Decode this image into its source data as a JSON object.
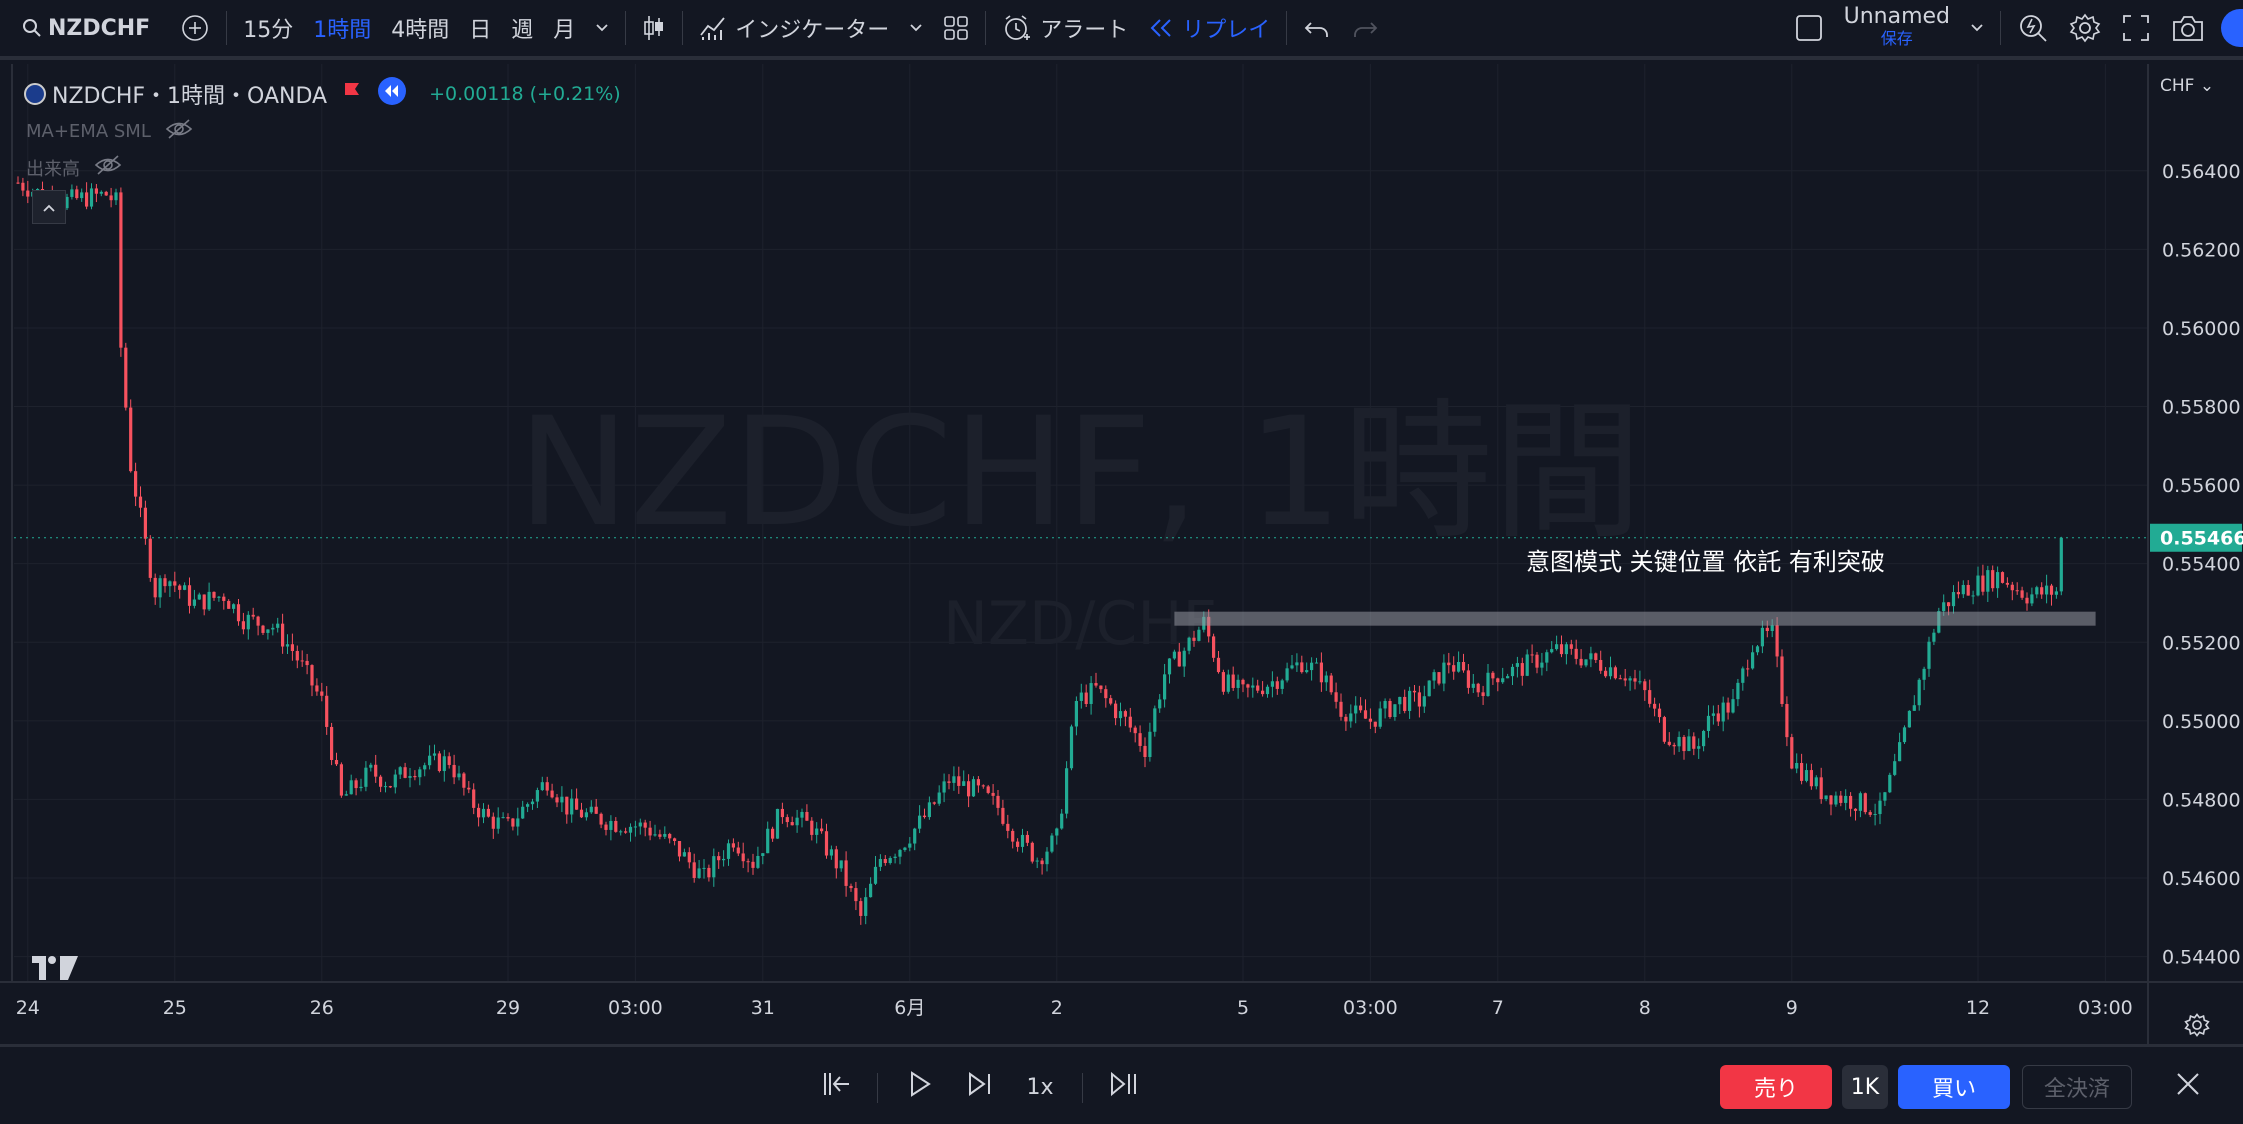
{
  "toolbar": {
    "symbol": "NZDCHF",
    "intervals": [
      "15分",
      "1時間",
      "4時間",
      "日",
      "週",
      "月"
    ],
    "active_interval": "1時間",
    "indicators_label": "インジケーター",
    "alert_label": "アラート",
    "replay_label": "リプレイ",
    "layout_name": "Unnamed",
    "save_label": "保存"
  },
  "legend": {
    "title": "NZDCHF・1時間・OANDA",
    "change": "+0.00118 (+0.21%)",
    "indicator1": "MA+EMA SML",
    "indicator2": "出来高"
  },
  "watermark": {
    "main": "NZDCHF, 1時間",
    "sub": "NZD/CHF"
  },
  "annotation": "意图模式 关键位置 依託 有利突破",
  "price_axis": {
    "currency": "CHF",
    "current_price": "0.55466"
  },
  "replay_controls": {
    "speed": "1x",
    "sell_label": "売り",
    "qty_label": "1K",
    "buy_label": "買い",
    "close_all_label": "全決済"
  },
  "colors": {
    "background": "#131722",
    "up": "#22ab94",
    "down": "#f7525f",
    "accent": "#2962ff",
    "price_tag": "#22ab94"
  },
  "chart_data": {
    "type": "candlestick",
    "symbol": "NZDCHF",
    "timeframe": "1時間",
    "ylim": [
      0.5432,
      0.5657
    ],
    "y_ticks": [
      0.564,
      0.562,
      0.56,
      0.558,
      0.556,
      0.554,
      0.552,
      0.55,
      0.548,
      0.546,
      0.544
    ],
    "y_tick_labels": [
      "0.56400",
      "0.56200",
      "0.56000",
      "0.55800",
      "0.55600",
      "0.55400",
      "0.55200",
      "0.55000",
      "0.54800",
      "0.54600",
      "0.54400"
    ],
    "x_labels": [
      {
        "label": "24",
        "bar": 2
      },
      {
        "label": "25",
        "bar": 32
      },
      {
        "label": "26",
        "bar": 62
      },
      {
        "label": "29",
        "bar": 100
      },
      {
        "label": "03:00",
        "bar": 126
      },
      {
        "label": "31",
        "bar": 152
      },
      {
        "label": "6月",
        "bar": 182
      },
      {
        "label": "2",
        "bar": 212
      },
      {
        "label": "5",
        "bar": 250
      },
      {
        "label": "03:00",
        "bar": 276
      },
      {
        "label": "7",
        "bar": 302
      },
      {
        "label": "8",
        "bar": 332
      },
      {
        "label": "9",
        "bar": 362
      },
      {
        "label": "12",
        "bar": 400
      },
      {
        "label": "03:00",
        "bar": 426
      }
    ],
    "bar_count": 418,
    "key_level": {
      "price": 0.5526,
      "from_bar": 236,
      "to_bar": 424
    },
    "last_price": 0.55466,
    "path_points": [
      [
        0,
        0.5637
      ],
      [
        8,
        0.5632
      ],
      [
        18,
        0.5634
      ],
      [
        20,
        0.5632
      ],
      [
        21,
        0.5595
      ],
      [
        23,
        0.5565
      ],
      [
        26,
        0.5545
      ],
      [
        28,
        0.5533
      ],
      [
        30,
        0.5537
      ],
      [
        36,
        0.553
      ],
      [
        42,
        0.5532
      ],
      [
        46,
        0.5526
      ],
      [
        52,
        0.5524
      ],
      [
        56,
        0.5518
      ],
      [
        62,
        0.5505
      ],
      [
        66,
        0.548
      ],
      [
        72,
        0.5487
      ],
      [
        76,
        0.5484
      ],
      [
        80,
        0.5488
      ],
      [
        88,
        0.549
      ],
      [
        92,
        0.548
      ],
      [
        96,
        0.5475
      ],
      [
        100,
        0.5473
      ],
      [
        108,
        0.5485
      ],
      [
        112,
        0.5478
      ],
      [
        116,
        0.5476
      ],
      [
        122,
        0.5474
      ],
      [
        128,
        0.5473
      ],
      [
        134,
        0.5468
      ],
      [
        140,
        0.546
      ],
      [
        146,
        0.547
      ],
      [
        150,
        0.5464
      ],
      [
        156,
        0.5477
      ],
      [
        162,
        0.5473
      ],
      [
        168,
        0.5462
      ],
      [
        172,
        0.545
      ],
      [
        176,
        0.5465
      ],
      [
        180,
        0.5468
      ],
      [
        186,
        0.5477
      ],
      [
        190,
        0.5485
      ],
      [
        196,
        0.5482
      ],
      [
        200,
        0.5478
      ],
      [
        204,
        0.547
      ],
      [
        208,
        0.5465
      ],
      [
        212,
        0.547
      ],
      [
        216,
        0.5505
      ],
      [
        220,
        0.5508
      ],
      [
        226,
        0.55
      ],
      [
        230,
        0.5493
      ],
      [
        234,
        0.5512
      ],
      [
        238,
        0.5518
      ],
      [
        242,
        0.5525
      ],
      [
        246,
        0.551
      ],
      [
        250,
        0.5507
      ],
      [
        256,
        0.551
      ],
      [
        262,
        0.5515
      ],
      [
        266,
        0.5512
      ],
      [
        270,
        0.5503
      ],
      [
        276,
        0.55
      ],
      [
        282,
        0.5505
      ],
      [
        286,
        0.5505
      ],
      [
        292,
        0.5515
      ],
      [
        298,
        0.5508
      ],
      [
        302,
        0.5512
      ],
      [
        306,
        0.5513
      ],
      [
        314,
        0.5518
      ],
      [
        322,
        0.5515
      ],
      [
        328,
        0.5512
      ],
      [
        332,
        0.5507
      ],
      [
        336,
        0.5497
      ],
      [
        342,
        0.5493
      ],
      [
        346,
        0.5502
      ],
      [
        350,
        0.5504
      ],
      [
        354,
        0.552
      ],
      [
        358,
        0.5522
      ],
      [
        362,
        0.549
      ],
      [
        368,
        0.5482
      ],
      [
        376,
        0.5479
      ],
      [
        380,
        0.5477
      ],
      [
        384,
        0.5492
      ],
      [
        388,
        0.551
      ],
      [
        392,
        0.5528
      ],
      [
        396,
        0.5533
      ],
      [
        400,
        0.5535
      ],
      [
        404,
        0.5537
      ],
      [
        410,
        0.5532
      ],
      [
        416,
        0.5533
      ],
      [
        417,
        0.5546
      ]
    ]
  }
}
